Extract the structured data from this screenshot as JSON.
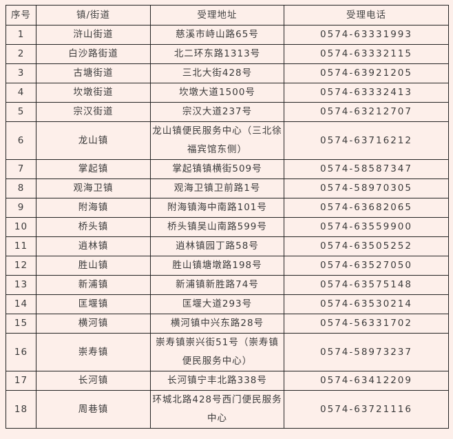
{
  "table": {
    "headers": [
      "序号",
      "镇/街道",
      "受理地址",
      "受理电话"
    ],
    "rows": [
      {
        "no": "1",
        "town": "浒山街道",
        "address": "慈溪市峙山路65号",
        "phone": "0574-63331993"
      },
      {
        "no": "2",
        "town": "白沙路街道",
        "address": "北二环东路1313号",
        "phone": "0574-63332115"
      },
      {
        "no": "3",
        "town": "古塘街道",
        "address": "三北大街428号",
        "phone": "0574-63921205"
      },
      {
        "no": "4",
        "town": "坎墩街道",
        "address": "坎墩大道1500号",
        "phone": "0574-63332413"
      },
      {
        "no": "5",
        "town": "宗汉街道",
        "address": "宗汉大道237号",
        "phone": "0574-63212707"
      },
      {
        "no": "6",
        "town": "龙山镇",
        "address": "龙山镇便民服务中心（三北徐福宾馆东侧）",
        "phone": "0574-63716212"
      },
      {
        "no": "7",
        "town": "掌起镇",
        "address": "掌起镇镇横街509号",
        "phone": "0574-58587347"
      },
      {
        "no": "8",
        "town": "观海卫镇",
        "address": "观海卫镇卫前路1号",
        "phone": "0574-58970305"
      },
      {
        "no": "9",
        "town": "附海镇",
        "address": "附海镇海中南路101号",
        "phone": "0574-63682065"
      },
      {
        "no": "10",
        "town": "桥头镇",
        "address": "桥头镇吴山南路599号",
        "phone": "0574-63559900"
      },
      {
        "no": "11",
        "town": "逍林镇",
        "address": "逍林镇园丁路58号",
        "phone": "0574-63505252"
      },
      {
        "no": "12",
        "town": "胜山镇",
        "address": "胜山镇塘墩路198号",
        "phone": "0574-63527050"
      },
      {
        "no": "13",
        "town": "新浦镇",
        "address": "新浦镇新胜路74号",
        "phone": "0574-63575148"
      },
      {
        "no": "14",
        "town": "匡堰镇",
        "address": "匡堰大道293号",
        "phone": "0574-63530214"
      },
      {
        "no": "15",
        "town": "横河镇",
        "address": "横河镇中兴东路28号",
        "phone": "0574-56331702"
      },
      {
        "no": "16",
        "town": "崇寿镇",
        "address": "崇寿镇崇兴街51号（崇寿镇便民服务中心）",
        "phone": "0574-58973237"
      },
      {
        "no": "17",
        "town": "长河镇",
        "address": "长河镇宁丰北路338号",
        "phone": "0574-63412209"
      },
      {
        "no": "18",
        "town": "周巷镇",
        "address": "环城北路428号西门便民服务中心",
        "phone": "0574-63721116"
      }
    ]
  }
}
